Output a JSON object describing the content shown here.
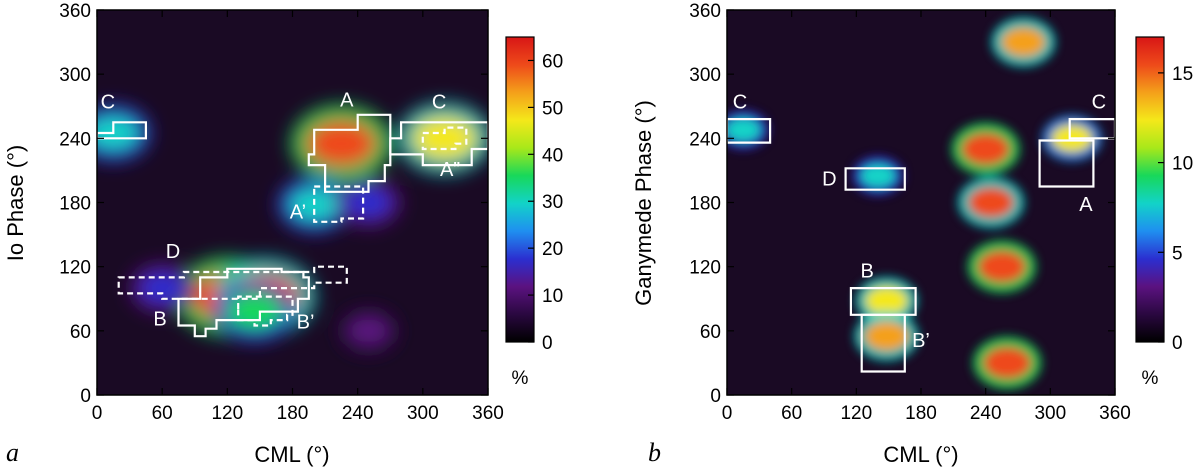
{
  "chart_data": [
    {
      "panel": "a",
      "type": "heatmap",
      "xlabel": "CML (°)",
      "ylabel": "Io Phase (°)",
      "xlim": [
        0,
        360
      ],
      "ylim": [
        0,
        360
      ],
      "x_ticks": [
        "0",
        "60",
        "120",
        "180",
        "240",
        "300",
        "360"
      ],
      "y_ticks": [
        "0",
        "60",
        "120",
        "180",
        "240",
        "300",
        "360"
      ],
      "colorbar": {
        "min": 0,
        "max": 65,
        "ticks": [
          "0",
          "10",
          "20",
          "30",
          "40",
          "50",
          "60"
        ],
        "unit": "%"
      },
      "hotspots": [
        {
          "x": 225,
          "y": 235,
          "value": 60
        },
        {
          "x": 120,
          "y": 92,
          "value": 62
        },
        {
          "x": 155,
          "y": 92,
          "value": 58
        },
        {
          "x": 320,
          "y": 240,
          "value": 50
        },
        {
          "x": 200,
          "y": 178,
          "value": 28
        },
        {
          "x": 15,
          "y": 245,
          "value": 30
        },
        {
          "x": 60,
          "y": 100,
          "value": 18
        },
        {
          "x": 145,
          "y": 78,
          "value": 35
        },
        {
          "x": 250,
          "y": 180,
          "value": 18
        },
        {
          "x": 250,
          "y": 60,
          "value": 12
        }
      ],
      "regions": [
        {
          "label": "C",
          "style": "solid",
          "polygon": [
            [
              0,
              245
            ],
            [
              15,
              245
            ],
            [
              15,
              255
            ],
            [
              45,
              255
            ],
            [
              45,
              240
            ],
            [
              0,
              240
            ]
          ],
          "label_at": [
            10,
            268
          ]
        },
        {
          "label": "A",
          "style": "solid",
          "polygon": [
            [
              195,
              225
            ],
            [
              200,
              225
            ],
            [
              200,
              248
            ],
            [
              240,
              248
            ],
            [
              240,
              262
            ],
            [
              270,
              262
            ],
            [
              270,
              215
            ],
            [
              265,
              215
            ],
            [
              265,
              200
            ],
            [
              250,
              200
            ],
            [
              250,
              190
            ],
            [
              210,
              190
            ],
            [
              210,
              215
            ],
            [
              195,
              215
            ]
          ],
          "label_at": [
            230,
            270
          ]
        },
        {
          "label": "C",
          "style": "solid",
          "polygon": [
            [
              270,
              240
            ],
            [
              280,
              240
            ],
            [
              280,
              255
            ],
            [
              360,
              255
            ],
            [
              360,
              230
            ],
            [
              345,
              230
            ],
            [
              345,
              215
            ],
            [
              300,
              215
            ],
            [
              300,
              225
            ],
            [
              270,
              225
            ]
          ],
          "label_at": [
            315,
            268
          ]
        },
        {
          "label": "A’",
          "style": "dashed",
          "polygon": [
            [
              200,
              195
            ],
            [
              245,
              195
            ],
            [
              245,
              165
            ],
            [
              225,
              165
            ],
            [
              225,
              162
            ],
            [
              200,
              162
            ]
          ],
          "label_at": [
            185,
            165
          ]
        },
        {
          "label": "A”",
          "style": "dashed",
          "polygon": [
            [
              300,
              245
            ],
            [
              320,
              245
            ],
            [
              320,
              250
            ],
            [
              340,
              250
            ],
            [
              340,
              235
            ],
            [
              330,
              235
            ],
            [
              330,
              230
            ],
            [
              300,
              230
            ]
          ],
          "label_at": [
            325,
            205
          ]
        },
        {
          "label": "D",
          "style": "dashed",
          "polygon": [
            [
              20,
              110
            ],
            [
              80,
              110
            ],
            [
              80,
              115
            ],
            [
              200,
              115
            ],
            [
              200,
              120
            ],
            [
              230,
              120
            ],
            [
              230,
              105
            ],
            [
              200,
              105
            ],
            [
              200,
              100
            ],
            [
              150,
              100
            ],
            [
              150,
              90
            ],
            [
              60,
              90
            ],
            [
              60,
              95
            ],
            [
              20,
              95
            ]
          ],
          "label_at": [
            70,
            128
          ]
        },
        {
          "label": "B",
          "style": "solid",
          "polygon": [
            [
              75,
              65
            ],
            [
              75,
              90
            ],
            [
              95,
              90
            ],
            [
              95,
              110
            ],
            [
              120,
              110
            ],
            [
              120,
              118
            ],
            [
              170,
              118
            ],
            [
              170,
              115
            ],
            [
              190,
              115
            ],
            [
              190,
              110
            ],
            [
              195,
              110
            ],
            [
              195,
              90
            ],
            [
              185,
              90
            ],
            [
              185,
              78
            ],
            [
              150,
              78
            ],
            [
              150,
              70
            ],
            [
              110,
              70
            ],
            [
              110,
              62
            ],
            [
              100,
              62
            ],
            [
              100,
              55
            ],
            [
              90,
              55
            ],
            [
              90,
              65
            ]
          ],
          "label_at": [
            58,
            65
          ]
        },
        {
          "label": "B’",
          "style": "dashed",
          "polygon": [
            [
              130,
              80
            ],
            [
              130,
              70
            ],
            [
              145,
              70
            ],
            [
              145,
              65
            ],
            [
              160,
              65
            ],
            [
              160,
              70
            ],
            [
              175,
              70
            ],
            [
              175,
              75
            ],
            [
              180,
              75
            ],
            [
              180,
              92
            ],
            [
              130,
              92
            ]
          ],
          "label_at": [
            192,
            62
          ]
        }
      ]
    },
    {
      "panel": "b",
      "type": "heatmap",
      "xlabel": "CML (°)",
      "ylabel": "Ganymede Phase (°)",
      "xlim": [
        0,
        360
      ],
      "ylim": [
        0,
        360
      ],
      "x_ticks": [
        "0",
        "60",
        "120",
        "180",
        "240",
        "300",
        "360"
      ],
      "y_ticks": [
        "0",
        "60",
        "120",
        "180",
        "240",
        "300",
        "360"
      ],
      "colorbar": {
        "min": 0,
        "max": 17,
        "ticks": [
          "0",
          "5",
          "10",
          "15"
        ],
        "unit": "%"
      },
      "hotspots": [
        {
          "x": 240,
          "y": 230,
          "value": 16
        },
        {
          "x": 255,
          "y": 120,
          "value": 16
        },
        {
          "x": 260,
          "y": 30,
          "value": 16
        },
        {
          "x": 275,
          "y": 330,
          "value": 14
        },
        {
          "x": 245,
          "y": 180,
          "value": 15
        },
        {
          "x": 148,
          "y": 88,
          "value": 13
        },
        {
          "x": 148,
          "y": 55,
          "value": 14
        },
        {
          "x": 320,
          "y": 240,
          "value": 12
        },
        {
          "x": 140,
          "y": 205,
          "value": 8
        },
        {
          "x": 15,
          "y": 248,
          "value": 8
        }
      ],
      "regions": [
        {
          "label": "C",
          "style": "solid",
          "polygon": [
            [
              0,
              258
            ],
            [
              40,
              258
            ],
            [
              40,
              236
            ],
            [
              0,
              236
            ]
          ],
          "label_at": [
            12,
            268
          ]
        },
        {
          "label": "C",
          "style": "solid",
          "polygon": [
            [
              318,
              258
            ],
            [
              360,
              258
            ],
            [
              360,
              240
            ],
            [
              318,
              240
            ]
          ],
          "label_at": [
            345,
            268
          ]
        },
        {
          "label": "D",
          "style": "solid",
          "polygon": [
            [
              110,
              212
            ],
            [
              165,
              212
            ],
            [
              165,
              192
            ],
            [
              110,
              192
            ]
          ],
          "label_at": [
            95,
            196
          ]
        },
        {
          "label": "A",
          "style": "solid",
          "polygon": [
            [
              290,
              238
            ],
            [
              340,
              238
            ],
            [
              340,
              195
            ],
            [
              290,
              195
            ]
          ],
          "label_at": [
            333,
            172
          ]
        },
        {
          "label": "B",
          "style": "solid",
          "polygon": [
            [
              115,
              100
            ],
            [
              175,
              100
            ],
            [
              175,
              75
            ],
            [
              115,
              75
            ]
          ],
          "label_at": [
            130,
            110
          ]
        },
        {
          "label": "B’",
          "style": "solid",
          "polygon": [
            [
              125,
              75
            ],
            [
              165,
              75
            ],
            [
              165,
              22
            ],
            [
              125,
              22
            ]
          ],
          "label_at": [
            180,
            45
          ]
        }
      ]
    }
  ],
  "labels": {
    "a": {
      "panel_letter": "a",
      "xlabel": "CML (°)",
      "ylabel": "Io Phase (°)",
      "cbar_unit": "%"
    },
    "b": {
      "panel_letter": "b",
      "xlabel": "CML (°)",
      "ylabel": "Ganymede Phase (°)",
      "cbar_unit": "%"
    }
  },
  "colors": {
    "scale": [
      "#000000",
      "#2a0840",
      "#5b1280",
      "#2b2fd0",
      "#1f8ff0",
      "#12d3c8",
      "#18d85a",
      "#a8e81a",
      "#f4e81a",
      "#f4a01a",
      "#ee4a1a",
      "#d81616"
    ]
  }
}
